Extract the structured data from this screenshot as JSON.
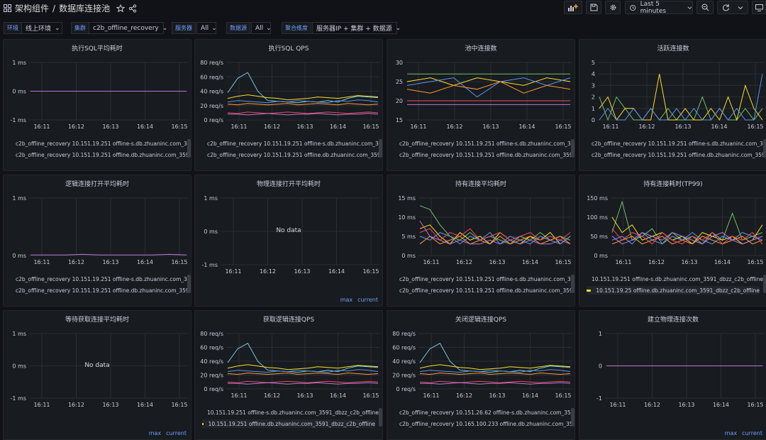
{
  "breadcrumb": {
    "folder": "架构组件",
    "separator": "/",
    "dashboard": "数据库连接池"
  },
  "toolbar": {
    "time_range": "Last 5 minutes"
  },
  "variables": [
    {
      "label": "环境",
      "value": "线上环境"
    },
    {
      "label": "集群",
      "value": "c2b_offline_recovery"
    },
    {
      "label": "服务器",
      "value": "All"
    },
    {
      "label": "数据源",
      "value": "All"
    },
    {
      "label": "聚合维度",
      "value": "服务器IP + 集群 + 数据源"
    }
  ],
  "x_ticks": [
    "16:11",
    "16:12",
    "16:13",
    "16:14",
    "16:15"
  ],
  "legend_sets": {
    "a": [
      "c2b_offline_recovery 10.151.19.251 offline-s.db.zhuaninc.com_3591_",
      "c2b_offline_recovery 10.151.19.251 offline.db.zhuaninc.com_3591_d"
    ],
    "b": [
      "10.151.19.251 offline-s.db.zhuaninc.com_3591_dbzz_c2b_offline",
      "10.151.19.25 offline.db.zhuaninc.com_3591_dbzz_c2b_offline"
    ],
    "c": [
      "10.151.19.251 offline-s.db.zhuaninc.com_3591_dbzz_c2b_offline",
      "10.151.19.251 offline.db.zhuaninc.com_3591_dbzz_c2b_offline"
    ],
    "d": [
      "c2b_offline_recovery 10.151.26.62 offline-s.db.zhuaninc.com_3591_c",
      "c2b_offline_recovery 10.165.100.233 offline.db.zhuaninc.com_3591"
    ]
  },
  "nodata_text": "No data",
  "legend_mode": {
    "max": "max",
    "current": "current"
  },
  "colors": {
    "green": "#73bf69",
    "yellow": "#fade2a",
    "blue": "#5794f2",
    "orange": "#ff9830",
    "red": "#f2495c",
    "purple": "#b877d9",
    "cyan": "#8ab8ff",
    "teal": "#73c9d9",
    "lime": "#96d98d",
    "pink": "#ff7383"
  },
  "panels": [
    {
      "title": "执行SQL平均耗时",
      "kind": "flat",
      "y_ticks": [
        "1 ms",
        "0 ms",
        "-1 ms"
      ],
      "chart_data": {
        "type": "line",
        "ylim": [
          -1,
          1
        ],
        "series": [
          {
            "values": [
              0,
              0,
              0,
              0,
              0,
              0,
              0,
              0,
              0,
              0
            ]
          }
        ]
      },
      "legend_set": "a",
      "legend_colors": [
        "green",
        "yellow"
      ]
    },
    {
      "title": "执行SQL QPS",
      "kind": "qps",
      "y_ticks": [
        "80 req/s",
        "60 req/s",
        "40 req/s",
        "20 req/s",
        "0 req/s"
      ],
      "chart_data": {
        "type": "line",
        "ylim": [
          0,
          80
        ],
        "series": [
          {
            "values": [
              38,
              58,
              66,
              40,
              27,
              26,
              25,
              24,
              26,
              25,
              27,
              25,
              30,
              33,
              32,
              31
            ]
          },
          {
            "values": [
              30,
              33,
              35,
              33,
              31,
              30,
              28,
              29,
              30,
              32,
              31,
              30,
              32,
              34,
              33,
              32
            ]
          },
          {
            "values": [
              25,
              27,
              26,
              25,
              24,
              26,
              25,
              27,
              26,
              25,
              24,
              27,
              26,
              28,
              27,
              25
            ]
          },
          {
            "values": [
              22,
              21,
              23,
              22,
              21,
              22,
              23,
              21,
              22,
              23,
              22,
              21,
              23,
              22,
              21,
              22
            ]
          },
          {
            "values": [
              10,
              9,
              11,
              10,
              9,
              10,
              11,
              10,
              9,
              10,
              11,
              10,
              9,
              10,
              11,
              10
            ]
          },
          {
            "values": [
              8,
              8,
              7,
              8,
              9,
              8,
              7,
              8,
              8,
              9,
              8,
              7,
              8,
              8,
              9,
              8
            ]
          }
        ]
      },
      "legend_set": "a",
      "legend_colors": [
        "green",
        "yellow"
      ]
    },
    {
      "title": "池中连接数",
      "kind": "pool",
      "y_ticks": [
        "30",
        "25",
        "20",
        "15"
      ],
      "chart_data": {
        "type": "line",
        "ylim": [
          15,
          30
        ],
        "series": [
          {
            "values": [
              27,
              27,
              27,
              27,
              27,
              27,
              27,
              27
            ]
          },
          {
            "values": [
              25,
              26,
              24,
              26,
              25,
              24,
              26,
              25
            ]
          },
          {
            "values": [
              24,
              25,
              26,
              21,
              25,
              26,
              24,
              26
            ]
          },
          {
            "values": [
              23,
              22,
              24,
              23,
              25,
              22,
              24,
              23
            ]
          },
          {
            "values": [
              20,
              20,
              20,
              20,
              20,
              20,
              20,
              20
            ]
          },
          {
            "values": [
              19,
              19,
              19,
              19,
              19,
              19,
              19,
              19
            ]
          }
        ]
      },
      "legend_set": "a",
      "legend_colors": [
        "green",
        "yellow"
      ]
    },
    {
      "title": "活跃连接数",
      "kind": "active",
      "y_ticks": [
        "5",
        "4",
        "3",
        "2",
        "1",
        "0"
      ],
      "chart_data": {
        "type": "line",
        "ylim": [
          0,
          5
        ],
        "series": [
          {
            "values": [
              2,
              0,
              2,
              1,
              0,
              0,
              1,
              0,
              1,
              0,
              0,
              0,
              2,
              0,
              1,
              0,
              0,
              1,
              0,
              1
            ]
          },
          {
            "values": [
              1,
              2,
              0,
              1,
              1,
              0,
              0,
              4,
              0,
              0,
              1,
              0,
              0,
              1,
              0,
              2,
              0,
              3,
              1,
              0
            ]
          },
          {
            "values": [
              0,
              1,
              0,
              0,
              1,
              0,
              1,
              0,
              0,
              1,
              0,
              1,
              0,
              0,
              1,
              0,
              1,
              0,
              0,
              4
            ]
          }
        ]
      },
      "legend_set": "a",
      "legend_colors": [
        "green",
        "yellow"
      ]
    },
    {
      "title": "逻辑连接打开平均耗时",
      "kind": "flat",
      "y_ticks": [
        "1 ms",
        "0 ms"
      ],
      "chart_data": {
        "type": "line",
        "ylim": [
          0,
          1
        ],
        "series": [
          {
            "values": [
              0.01,
              0.01,
              0.01,
              0.02,
              0.01,
              0.01,
              0.01,
              0.01,
              0.02,
              0.01
            ]
          }
        ]
      },
      "legend_set": "a",
      "legend_colors": [
        "green",
        "yellow"
      ]
    },
    {
      "title": "物理连接打开平均耗时",
      "kind": "nodata",
      "y_ticks": [
        "1 ms",
        "0 ms",
        "-1 ms"
      ],
      "legend_set": null
    },
    {
      "title": "持有连接平均耗时",
      "kind": "noisy",
      "y_ticks": [
        "15 ms",
        "10 ms",
        "5 ms",
        "0 ms"
      ],
      "chart_data": {
        "type": "line",
        "ylim": [
          0,
          15
        ],
        "series": [
          {
            "values": [
              13,
              12,
              8,
              5,
              4,
              6,
              4,
              5,
              4,
              3,
              5,
              4,
              6,
              4,
              5,
              4
            ]
          },
          {
            "values": [
              7,
              8,
              5,
              3,
              6,
              4,
              5,
              3,
              6,
              4,
              3,
              5,
              4,
              6,
              3,
              5
            ]
          },
          {
            "values": [
              5,
              4,
              6,
              5,
              3,
              5,
              4,
              6,
              3,
              5,
              4,
              3,
              5,
              4,
              3,
              5
            ]
          },
          {
            "values": [
              3,
              5,
              3,
              4,
              5,
              3,
              4,
              3,
              5,
              3,
              4,
              5,
              3,
              4,
              5,
              3
            ]
          },
          {
            "values": [
              6,
              7,
              4,
              6,
              5,
              7,
              4,
              5,
              6,
              4,
              5,
              6,
              4,
              5,
              4,
              6
            ]
          },
          {
            "values": [
              9,
              5,
              4,
              3,
              4,
              3,
              3,
              4,
              3,
              4,
              3,
              4,
              3,
              3,
              4,
              3
            ]
          }
        ]
      },
      "legend_set": "a",
      "legend_colors": [
        "green",
        "yellow"
      ]
    },
    {
      "title": "持有连接耗时(TP99)",
      "kind": "noisy",
      "y_ticks": [
        "150 ms",
        "100 ms",
        "50 ms",
        "0 ms"
      ],
      "chart_data": {
        "type": "line",
        "ylim": [
          0,
          150
        ],
        "series": [
          {
            "values": [
              60,
              140,
              40,
              50,
              70,
              30,
              60,
              40,
              50,
              30,
              60,
              40,
              110,
              40,
              50,
              60
            ]
          },
          {
            "values": [
              100,
              60,
              80,
              40,
              50,
              60,
              40,
              50,
              30,
              60,
              50,
              40,
              50,
              30,
              40,
              80
            ]
          },
          {
            "values": [
              40,
              50,
              30,
              60,
              40,
              30,
              50,
              40,
              60,
              40,
              30,
              50,
              40,
              60,
              50,
              40
            ]
          },
          {
            "values": [
              30,
              40,
              50,
              30,
              40,
              50,
              30,
              40,
              30,
              50,
              40,
              30,
              40,
              50,
              30,
              40
            ]
          },
          {
            "values": [
              70,
              40,
              60,
              50,
              30,
              60,
              40,
              30,
              50,
              40,
              60,
              30,
              50,
              40,
              60,
              30
            ]
          },
          {
            "values": [
              50,
              30,
              40,
              60,
              50,
              40,
              60,
              50,
              40,
              30,
              50,
              60,
              40,
              30,
              40,
              50
            ]
          }
        ]
      },
      "legend_set": "b",
      "legend_colors": [
        "green",
        "yellow"
      ]
    },
    {
      "title": "等待获取连接平均耗时",
      "kind": "nodata",
      "y_ticks": [
        "1 ms",
        "0 ms",
        "-1 ms"
      ],
      "legend_set": null
    },
    {
      "title": "获取逻辑连接QPS",
      "kind": "qps",
      "y_ticks": [
        "80 req/s",
        "60 req/s",
        "40 req/s",
        "20 req/s",
        "0 req/s"
      ],
      "chart_data": {
        "type": "line",
        "ylim": [
          0,
          80
        ],
        "series": [
          {
            "values": [
              38,
              58,
              66,
              40,
              27,
              26,
              25,
              24,
              26,
              25,
              27,
              25,
              30,
              33,
              32,
              31
            ]
          },
          {
            "values": [
              30,
              33,
              35,
              33,
              31,
              30,
              28,
              29,
              30,
              32,
              31,
              30,
              32,
              34,
              33,
              32
            ]
          },
          {
            "values": [
              25,
              27,
              26,
              25,
              24,
              26,
              25,
              27,
              26,
              25,
              24,
              27,
              26,
              28,
              27,
              25
            ]
          },
          {
            "values": [
              22,
              21,
              23,
              22,
              21,
              22,
              23,
              21,
              22,
              23,
              22,
              21,
              23,
              22,
              21,
              22
            ]
          },
          {
            "values": [
              10,
              9,
              11,
              10,
              9,
              10,
              11,
              10,
              9,
              10,
              11,
              10,
              9,
              10,
              11,
              10
            ]
          },
          {
            "values": [
              8,
              8,
              7,
              8,
              9,
              8,
              7,
              8,
              8,
              9,
              8,
              7,
              8,
              8,
              9,
              8
            ]
          }
        ]
      },
      "legend_set": "c",
      "legend_colors": [
        "green",
        "yellow"
      ]
    },
    {
      "title": "关闭逻辑连接QPS",
      "kind": "qps",
      "y_ticks": [
        "80 req/s",
        "60 req/s",
        "40 req/s",
        "20 req/s",
        "0 req/s"
      ],
      "chart_data": {
        "type": "line",
        "ylim": [
          0,
          80
        ],
        "series": [
          {
            "values": [
              38,
              58,
              66,
              40,
              27,
              26,
              25,
              24,
              26,
              25,
              27,
              25,
              30,
              33,
              32,
              31
            ]
          },
          {
            "values": [
              30,
              33,
              35,
              33,
              31,
              30,
              28,
              29,
              30,
              32,
              31,
              30,
              32,
              34,
              33,
              32
            ]
          },
          {
            "values": [
              25,
              27,
              26,
              25,
              24,
              26,
              25,
              27,
              26,
              25,
              24,
              27,
              26,
              28,
              27,
              25
            ]
          },
          {
            "values": [
              22,
              21,
              23,
              22,
              21,
              22,
              23,
              21,
              22,
              23,
              22,
              21,
              23,
              22,
              21,
              22
            ]
          },
          {
            "values": [
              10,
              9,
              11,
              10,
              9,
              10,
              11,
              10,
              9,
              10,
              11,
              10,
              9,
              10,
              11,
              10
            ]
          },
          {
            "values": [
              8,
              8,
              7,
              8,
              9,
              8,
              7,
              8,
              8,
              9,
              8,
              7,
              8,
              8,
              9,
              8
            ]
          }
        ]
      },
      "legend_set": "d",
      "legend_colors": [
        "teal",
        "blue"
      ]
    },
    {
      "title": "建立物理连接次数",
      "kind": "flat",
      "y_ticks": [
        "1",
        "0",
        "-1"
      ],
      "chart_data": {
        "type": "line",
        "ylim": [
          -1,
          1
        ],
        "series": [
          {
            "values": [
              0,
              0,
              0,
              0,
              0,
              0,
              0,
              0,
              0,
              0
            ]
          }
        ]
      },
      "legend_set": null
    }
  ]
}
